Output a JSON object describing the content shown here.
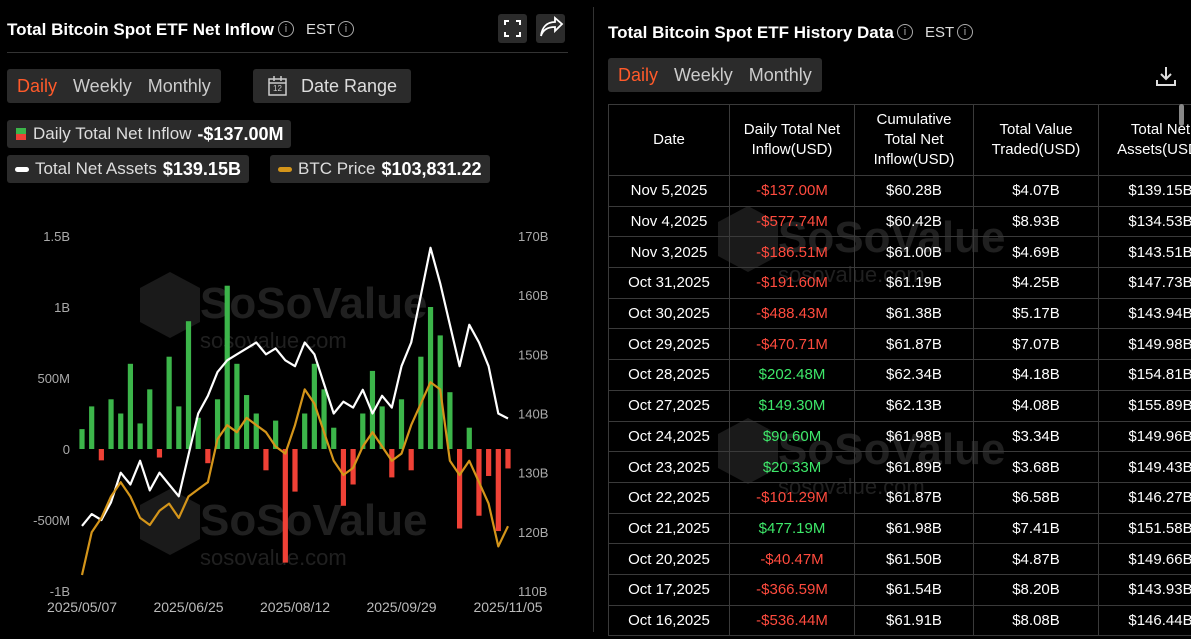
{
  "left_panel": {
    "title": "Total Bitcoin Spot ETF Net Inflow",
    "timezone": "EST",
    "tabs": [
      "Daily",
      "Weekly",
      "Monthly"
    ],
    "active_tab": 0,
    "date_range": "Date Range"
  },
  "chart_data": {
    "type": "bar",
    "categories": [
      "2025/05/07",
      null,
      null,
      null,
      null,
      null,
      null,
      null,
      null,
      null,
      null,
      "2025/06/25",
      null,
      null,
      null,
      null,
      null,
      null,
      null,
      null,
      null,
      null,
      "2025/08/12",
      null,
      null,
      null,
      null,
      null,
      null,
      null,
      null,
      null,
      null,
      "2025/09/29",
      null,
      null,
      null,
      null,
      null,
      null,
      null,
      null,
      null,
      null,
      "2025/11/05"
    ],
    "series": [
      {
        "name": "Daily Total Net Inflow",
        "type": "bar",
        "color": "#3cb54a",
        "negative_color": "#ef4136",
        "latest": "-$137.00M",
        "values": [
          140,
          300,
          -80,
          350,
          250,
          600,
          180,
          420,
          -60,
          650,
          300,
          900,
          220,
          -100,
          350,
          1150,
          600,
          380,
          250,
          -150,
          200,
          -800,
          -300,
          250,
          600,
          420,
          150,
          -400,
          -250,
          250,
          550,
          300,
          -200,
          350,
          -150,
          650,
          1000,
          800,
          400,
          -560,
          150,
          -470,
          -190,
          -578,
          -137
        ]
      },
      {
        "name": "Total Net Assets",
        "type": "line",
        "axis": "y2",
        "color": "#ffffff",
        "latest": "$139.15B",
        "values": [
          121,
          123,
          122,
          125,
          130,
          128,
          132,
          127,
          130,
          128,
          126,
          133,
          140,
          143,
          147,
          149,
          150,
          151,
          152,
          150,
          151,
          149,
          148,
          152,
          150,
          145,
          140,
          142,
          141,
          144,
          140,
          143,
          141,
          148,
          152,
          160,
          168,
          162,
          155,
          148,
          155,
          152,
          148,
          140,
          139.15
        ]
      },
      {
        "name": "BTC Price",
        "type": "line",
        "axis": "y3",
        "color": "#d4951a",
        "latest": "$103,831.22",
        "values": [
          97000,
          103000,
          105000,
          108000,
          110000,
          108000,
          105000,
          104000,
          106000,
          107000,
          105000,
          108000,
          109000,
          110000,
          116000,
          118000,
          117000,
          119000,
          118000,
          117000,
          115000,
          114000,
          118000,
          123000,
          121000,
          117000,
          113000,
          111000,
          112000,
          115000,
          117000,
          115000,
          113000,
          114000,
          118000,
          121000,
          124000,
          123000,
          113000,
          111000,
          113000,
          110000,
          107000,
          101000,
          103831.22
        ]
      }
    ],
    "ylim": [
      -1000,
      1500
    ],
    "yticks": [
      {
        "value": -1000,
        "label": "-1B"
      },
      {
        "value": -500,
        "label": "-500M"
      },
      0,
      {
        "value": 500,
        "label": "500M"
      },
      {
        "value": 1000,
        "label": "1B"
      },
      {
        "value": 1500,
        "label": "1.5B"
      }
    ],
    "y2lim": [
      110,
      170
    ],
    "y2ticks": [
      {
        "value": 110,
        "label": "110B"
      },
      {
        "value": 120,
        "label": "120B"
      },
      {
        "value": 130,
        "label": "130B"
      },
      {
        "value": 140,
        "label": "140B"
      },
      {
        "value": 150,
        "label": "150B"
      },
      {
        "value": 160,
        "label": "160B"
      },
      {
        "value": 170,
        "label": "170B"
      }
    ],
    "y3lim": [
      94760,
      144480
    ]
  },
  "watermark": {
    "brand": "SoSoValue",
    "site": "sosovalue.com"
  },
  "history": {
    "title": "Total Bitcoin Spot ETF History Data",
    "timezone": "EST",
    "tabs": [
      "Daily",
      "Weekly",
      "Monthly"
    ],
    "active_tab": 0,
    "columns": [
      "Date",
      "Daily Total Net Inflow(USD)",
      "Cumulative Total Net Inflow(USD)",
      "Total Value Traded(USD)",
      "Total Net Assets(USD)"
    ],
    "rows": [
      [
        "Nov 5,2025",
        "-$137.00M",
        "$60.28B",
        "$4.07B",
        "$139.15B"
      ],
      [
        "Nov 4,2025",
        "-$577.74M",
        "$60.42B",
        "$8.93B",
        "$134.53B"
      ],
      [
        "Nov 3,2025",
        "-$186.51M",
        "$61.00B",
        "$4.69B",
        "$143.51B"
      ],
      [
        "Oct 31,2025",
        "-$191.60M",
        "$61.19B",
        "$4.25B",
        "$147.73B"
      ],
      [
        "Oct 30,2025",
        "-$488.43M",
        "$61.38B",
        "$5.17B",
        "$143.94B"
      ],
      [
        "Oct 29,2025",
        "-$470.71M",
        "$61.87B",
        "$7.07B",
        "$149.98B"
      ],
      [
        "Oct 28,2025",
        "$202.48M",
        "$62.34B",
        "$4.18B",
        "$154.81B"
      ],
      [
        "Oct 27,2025",
        "$149.30M",
        "$62.13B",
        "$4.08B",
        "$155.89B"
      ],
      [
        "Oct 24,2025",
        "$90.60M",
        "$61.98B",
        "$3.34B",
        "$149.96B"
      ],
      [
        "Oct 23,2025",
        "$20.33M",
        "$61.89B",
        "$3.68B",
        "$149.43B"
      ],
      [
        "Oct 22,2025",
        "-$101.29M",
        "$61.87B",
        "$6.58B",
        "$146.27B"
      ],
      [
        "Oct 21,2025",
        "$477.19M",
        "$61.98B",
        "$7.41B",
        "$151.58B"
      ],
      [
        "Oct 20,2025",
        "-$40.47M",
        "$61.50B",
        "$4.87B",
        "$149.66B"
      ],
      [
        "Oct 17,2025",
        "-$366.59M",
        "$61.54B",
        "$8.20B",
        "$143.93B"
      ],
      [
        "Oct 16,2025",
        "-$536.44M",
        "$61.91B",
        "$8.08B",
        "$146.44B"
      ]
    ]
  }
}
